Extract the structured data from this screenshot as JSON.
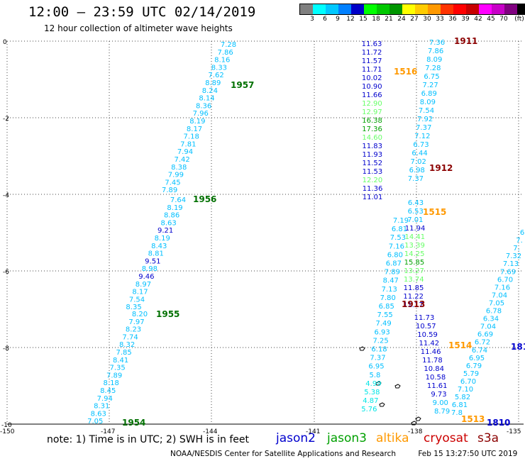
{
  "header": {
    "title": "12:00 — 23:59 UTC 02/14/2019",
    "subtitle": "12 hour collection of altimeter wave heights"
  },
  "colorbar": {
    "colors": [
      "#808080",
      "#00ffff",
      "#00c8ff",
      "#0080ff",
      "#0000c8",
      "#00ff00",
      "#00c800",
      "#009600",
      "#ffff00",
      "#ffcc00",
      "#ff9900",
      "#ff3300",
      "#ff0000",
      "#c80000",
      "#ff00ff",
      "#c800c8",
      "#800080",
      "#000000"
    ],
    "labels": [
      "3",
      "6",
      "9",
      "12",
      "15",
      "18",
      "21",
      "24",
      "27",
      "30",
      "33",
      "36",
      "39",
      "42",
      "45",
      "70",
      "(ft)"
    ]
  },
  "axes": {
    "lat_labels": [
      "0",
      "-2",
      "-4",
      "-6",
      "-8",
      "-10"
    ],
    "lon_labels": [
      "-150",
      "-147",
      "-144",
      "-141",
      "-138",
      "-135"
    ]
  },
  "tracks": [
    {
      "name": "track-1957",
      "label": "1957",
      "label_color": "#007000",
      "points": [
        {
          "v": "7.28",
          "c": "#00bfff"
        },
        {
          "v": "7.86",
          "c": "#00bfff"
        },
        {
          "v": "8.16",
          "c": "#00bfff"
        },
        {
          "v": "8.33",
          "c": "#00bfff"
        },
        {
          "v": "7.62",
          "c": "#00bfff"
        },
        {
          "v": "8.89",
          "c": "#00bfff"
        },
        {
          "v": "8.24",
          "c": "#00bfff"
        },
        {
          "v": "8.14",
          "c": "#00bfff"
        },
        {
          "v": "8.36",
          "c": "#00bfff"
        },
        {
          "v": "7.96",
          "c": "#00bfff"
        },
        {
          "v": "8.19",
          "c": "#00bfff"
        },
        {
          "v": "8.17",
          "c": "#00bfff"
        },
        {
          "v": "7.18",
          "c": "#00bfff"
        },
        {
          "v": "7.81",
          "c": "#00bfff"
        },
        {
          "v": "7.94",
          "c": "#00bfff"
        },
        {
          "v": "7.42",
          "c": "#00bfff"
        },
        {
          "v": "8.38",
          "c": "#00bfff"
        },
        {
          "v": "7.99",
          "c": "#00bfff"
        },
        {
          "v": "7.45",
          "c": "#00bfff"
        },
        {
          "v": "7.89",
          "c": "#00bfff"
        }
      ]
    },
    {
      "name": "track-1956",
      "label": "1956",
      "label_color": "#007000",
      "points": [
        {
          "v": "7.64",
          "c": "#00bfff"
        },
        {
          "v": "8.19",
          "c": "#00bfff"
        },
        {
          "v": "8.86",
          "c": "#00bfff"
        },
        {
          "v": "8.63",
          "c": "#00bfff"
        },
        {
          "v": "9.21",
          "c": "#0000cd"
        },
        {
          "v": "8.19",
          "c": "#00bfff"
        },
        {
          "v": "8.43",
          "c": "#00bfff"
        },
        {
          "v": "8.81",
          "c": "#00bfff"
        },
        {
          "v": "9.51",
          "c": "#0000cd"
        },
        {
          "v": "8.98",
          "c": "#00bfff"
        },
        {
          "v": "9.46",
          "c": "#0000cd"
        },
        {
          "v": "8.97",
          "c": "#00bfff"
        },
        {
          "v": "8.17",
          "c": "#00bfff"
        },
        {
          "v": "7.54",
          "c": "#00bfff"
        },
        {
          "v": "8.35",
          "c": "#00bfff"
        }
      ]
    },
    {
      "name": "track-1955",
      "label": "1955",
      "label_color": "#007000",
      "points": [
        {
          "v": "8.20",
          "c": "#00bfff"
        },
        {
          "v": "7.97",
          "c": "#00bfff"
        },
        {
          "v": "8.23",
          "c": "#00bfff"
        },
        {
          "v": "7.74",
          "c": "#00bfff"
        },
        {
          "v": "8.32",
          "c": "#00bfff"
        },
        {
          "v": "7.85",
          "c": "#00bfff"
        },
        {
          "v": "8.41",
          "c": "#00bfff"
        },
        {
          "v": "7.35",
          "c": "#00bfff"
        },
        {
          "v": "7.89",
          "c": "#00bfff"
        },
        {
          "v": "8.18",
          "c": "#00bfff"
        },
        {
          "v": "8.45",
          "c": "#00bfff"
        },
        {
          "v": "7.94",
          "c": "#00bfff"
        },
        {
          "v": "8.31",
          "c": "#00bfff"
        },
        {
          "v": "8.63",
          "c": "#00bfff"
        },
        {
          "v": "7.05",
          "c": "#00bfff"
        }
      ]
    },
    {
      "name": "track-1516",
      "label": "1516",
      "label_color": "#ff9900",
      "points": [
        {
          "v": "11.63",
          "c": "#0000cd"
        },
        {
          "v": "11.72",
          "c": "#0000cd"
        },
        {
          "v": "11.57",
          "c": "#0000cd"
        },
        {
          "v": "11.71",
          "c": "#0000cd"
        },
        {
          "v": "10.02",
          "c": "#0000cd"
        },
        {
          "v": "10.90",
          "c": "#0000cd"
        },
        {
          "v": "11.66",
          "c": "#0000cd"
        },
        {
          "v": "12.90",
          "c": "#66ff66"
        },
        {
          "v": "12.97",
          "c": "#66ff66"
        },
        {
          "v": "16.38",
          "c": "#00a000"
        },
        {
          "v": "17.36",
          "c": "#00a000"
        },
        {
          "v": "14.60",
          "c": "#66ff66"
        },
        {
          "v": "11.83",
          "c": "#0000cd"
        },
        {
          "v": "11.93",
          "c": "#0000cd"
        },
        {
          "v": "11.52",
          "c": "#0000cd"
        },
        {
          "v": "11.53",
          "c": "#0000cd"
        },
        {
          "v": "12.20",
          "c": "#66ff66"
        },
        {
          "v": "11.36",
          "c": "#0000cd"
        },
        {
          "v": "11.01",
          "c": "#0000cd"
        }
      ]
    },
    {
      "name": "track-1515",
      "label": "1515",
      "label_color": "#ff9900",
      "points": [
        {
          "v": "7.19",
          "c": "#00bfff"
        },
        {
          "v": "6.81",
          "c": "#00bfff"
        },
        {
          "v": "7.53",
          "c": "#00bfff"
        },
        {
          "v": "7.16",
          "c": "#00bfff"
        },
        {
          "v": "6.80",
          "c": "#00bfff"
        },
        {
          "v": "6.87",
          "c": "#00bfff"
        },
        {
          "v": "7.89",
          "c": "#00bfff"
        },
        {
          "v": "8.47",
          "c": "#00bfff"
        },
        {
          "v": "7.13",
          "c": "#00bfff"
        },
        {
          "v": "7.80",
          "c": "#00bfff"
        },
        {
          "v": "6.85",
          "c": "#00bfff"
        },
        {
          "v": "7.55",
          "c": "#00bfff"
        },
        {
          "v": "7.49",
          "c": "#00bfff"
        },
        {
          "v": "6.93",
          "c": "#00bfff"
        },
        {
          "v": "7.25",
          "c": "#00bfff"
        },
        {
          "v": "6.18",
          "c": "#00bfff"
        },
        {
          "v": "7.37",
          "c": "#00bfff"
        },
        {
          "v": "6.95",
          "c": "#00bfff"
        },
        {
          "v": "5.8",
          "c": "#00bfff"
        },
        {
          "v": "4.99",
          "c": "#00e5e5"
        },
        {
          "v": "5.38",
          "c": "#00e5e5"
        },
        {
          "v": "4.87",
          "c": "#00e5e5"
        },
        {
          "v": "5.76",
          "c": "#00e5e5"
        }
      ]
    },
    {
      "name": "track-1911",
      "label": "1911",
      "label_color": "#8b0000",
      "points": [
        {
          "v": "7.36",
          "c": "#00bfff"
        },
        {
          "v": "7.86",
          "c": "#00bfff"
        },
        {
          "v": "8.09",
          "c": "#00bfff"
        },
        {
          "v": "7.28",
          "c": "#00bfff"
        },
        {
          "v": "6.75",
          "c": "#00bfff"
        },
        {
          "v": "7.27",
          "c": "#00bfff"
        },
        {
          "v": "6.89",
          "c": "#00bfff"
        },
        {
          "v": "8.09",
          "c": "#00bfff"
        },
        {
          "v": "7.54",
          "c": "#00bfff"
        },
        {
          "v": "7.92",
          "c": "#00bfff"
        },
        {
          "v": "7.37",
          "c": "#00bfff"
        },
        {
          "v": "7.12",
          "c": "#00bfff"
        },
        {
          "v": "6.73",
          "c": "#00bfff"
        },
        {
          "v": "6.44",
          "c": "#00bfff"
        },
        {
          "v": "7.02",
          "c": "#00bfff"
        },
        {
          "v": "6.98",
          "c": "#00bfff"
        },
        {
          "v": "7.37",
          "c": "#00bfff"
        }
      ]
    },
    {
      "name": "track-1912",
      "label": "1912",
      "label_color": "#8b0000",
      "points": [
        {
          "v": "6.43",
          "c": "#00bfff"
        },
        {
          "v": "6.53",
          "c": "#00bfff"
        },
        {
          "v": "7.01",
          "c": "#00bfff"
        },
        {
          "v": "11.94",
          "c": "#0000cd"
        },
        {
          "v": "14.41",
          "c": "#66ff66"
        },
        {
          "v": "13.39",
          "c": "#66ff66"
        },
        {
          "v": "14.25",
          "c": "#66ff66"
        },
        {
          "v": "15.85",
          "c": "#00a000"
        },
        {
          "v": "13.27",
          "c": "#66ff66"
        },
        {
          "v": "13.74",
          "c": "#66ff66"
        },
        {
          "v": "11.85",
          "c": "#0000cd"
        },
        {
          "v": "11.22",
          "c": "#0000cd"
        },
        {
          "v": "11.17",
          "c": "#0000cd"
        }
      ]
    },
    {
      "name": "track-1913",
      "label": "1913",
      "label_color": "#8b0000",
      "points": [
        {
          "v": "11.73",
          "c": "#0000cd"
        },
        {
          "v": "10.57",
          "c": "#0000cd"
        },
        {
          "v": "10.59",
          "c": "#0000cd"
        },
        {
          "v": "11.42",
          "c": "#0000cd"
        },
        {
          "v": "11.46",
          "c": "#0000cd"
        },
        {
          "v": "11.78",
          "c": "#0000cd"
        },
        {
          "v": "10.84",
          "c": "#0000cd"
        },
        {
          "v": "10.58",
          "c": "#0000cd"
        },
        {
          "v": "11.61",
          "c": "#0000cd"
        },
        {
          "v": "9.73",
          "c": "#0000cd"
        },
        {
          "v": "9.00",
          "c": "#00bfff"
        },
        {
          "v": "8.79",
          "c": "#00bfff"
        }
      ]
    },
    {
      "name": "track-1514",
      "label": "1514",
      "label_color": "#ff9900",
      "points": [
        {
          "v": "6",
          "c": "#00bfff"
        },
        {
          "v": "7.",
          "c": "#00bfff"
        },
        {
          "v": "7.",
          "c": "#00bfff"
        },
        {
          "v": "7.32",
          "c": "#00bfff"
        },
        {
          "v": "7.13",
          "c": "#00bfff"
        },
        {
          "v": "7.69",
          "c": "#00bfff"
        },
        {
          "v": "6.70",
          "c": "#00bfff"
        },
        {
          "v": "7.16",
          "c": "#00bfff"
        },
        {
          "v": "7.04",
          "c": "#00bfff"
        },
        {
          "v": "7.05",
          "c": "#00bfff"
        },
        {
          "v": "6.78",
          "c": "#00bfff"
        },
        {
          "v": "6.34",
          "c": "#00bfff"
        },
        {
          "v": "7.04",
          "c": "#00bfff"
        },
        {
          "v": "6.69",
          "c": "#00bfff"
        },
        {
          "v": "6.72",
          "c": "#00bfff"
        },
        {
          "v": "6.74",
          "c": "#00bfff"
        },
        {
          "v": "6.95",
          "c": "#00bfff"
        },
        {
          "v": "6.79",
          "c": "#00bfff"
        },
        {
          "v": "5.79",
          "c": "#00bfff"
        },
        {
          "v": "6.70",
          "c": "#00bfff"
        },
        {
          "v": "7.10",
          "c": "#00bfff"
        },
        {
          "v": "5.82",
          "c": "#00bfff"
        },
        {
          "v": "6.81",
          "c": "#00bfff"
        },
        {
          "v": "7.8",
          "c": "#00bfff"
        }
      ]
    }
  ],
  "extra_labels": [
    {
      "name": "track-label-1954",
      "text": "1954",
      "color": "#007000"
    },
    {
      "name": "track-label-1513",
      "text": "1513",
      "color": "#ff9900"
    },
    {
      "name": "track-label-1810",
      "text": "1810",
      "color": "#0000cd"
    },
    {
      "name": "track-label-181",
      "text": "181",
      "color": "#0000cd"
    }
  ],
  "note": "note: 1) Time is in UTC; 2) SWH is in feet",
  "satellites": [
    {
      "name": "jason2",
      "color": "#0000cd"
    },
    {
      "name": "jason3",
      "color": "#00a000"
    },
    {
      "name": "altika",
      "color": "#ff9900"
    },
    {
      "name": "cryosat",
      "color": "#cc0000"
    },
    {
      "name": "s3a",
      "color": "#8b0000"
    }
  ],
  "footer": {
    "credit": "NOAA/NESDIS Center for Satellite Applications and Research",
    "timestamp": "Feb 15 13:27:50 UTC 2019"
  }
}
